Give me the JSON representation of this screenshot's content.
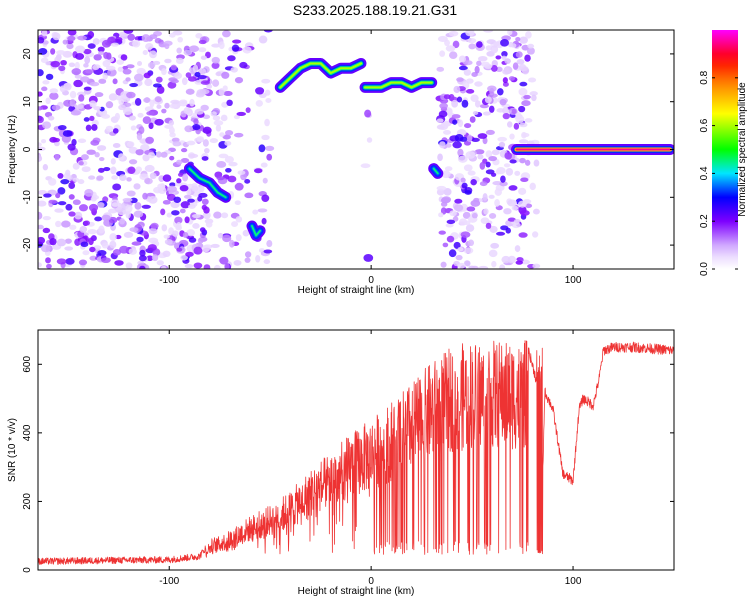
{
  "title": "S233.2025.188.19.21.G31",
  "chart_data": [
    {
      "type": "heatmap",
      "xlabel": "Height of straight line (km)",
      "ylabel": "Frequency (Hz)",
      "xlim": [
        -165,
        150
      ],
      "ylim": [
        -25,
        25
      ],
      "xticks": [
        -100,
        0,
        100
      ],
      "xtick_labels": [
        "-100",
        "0",
        "100"
      ],
      "yticks": [
        -20,
        -10,
        0,
        10,
        20
      ],
      "ytick_labels": [
        "-20",
        "-10",
        "0",
        "10",
        "20"
      ],
      "colorbar": {
        "label": "Normalized spectral amplitude",
        "range": [
          0,
          1
        ],
        "ticks": [
          0.0,
          0.2,
          0.4,
          0.6,
          0.8
        ],
        "tick_labels": [
          "0.0",
          "0.2",
          "0.4",
          "0.6",
          "0.8"
        ],
        "colors": [
          "#ffffff",
          "#e6ccff",
          "#7f00ff",
          "#0000ff",
          "#00ffff",
          "#00ff00",
          "#ffff00",
          "#ff7f00",
          "#ff0000",
          "#ff00ff"
        ]
      },
      "tracks": [
        {
          "x": [
            -90,
            -85,
            -80,
            -76,
            -72
          ],
          "y": [
            -4,
            -6,
            -7,
            -9,
            -10
          ],
          "amplitude": 0.45
        },
        {
          "x": [
            -59,
            -57,
            -55
          ],
          "y": [
            -16,
            -18,
            -17
          ],
          "amplitude": 0.45
        },
        {
          "x": [
            -45,
            -40,
            -35,
            -30,
            -25,
            -20,
            -15,
            -10,
            -5
          ],
          "y": [
            13,
            15,
            17,
            18,
            18,
            16,
            17,
            17,
            18
          ],
          "amplitude": 0.6
        },
        {
          "x": [
            -3,
            5,
            10,
            15,
            20,
            25,
            30
          ],
          "y": [
            13,
            13,
            14,
            14,
            13,
            14,
            14
          ],
          "amplitude": 0.6
        },
        {
          "x": [
            31,
            33
          ],
          "y": [
            -4,
            -5
          ],
          "amplitude": 0.45
        },
        {
          "x": [
            72,
            80,
            90,
            100,
            110,
            120,
            130,
            140,
            148
          ],
          "y": [
            0,
            0,
            0,
            0,
            0,
            0,
            0,
            0,
            0
          ],
          "amplitude": 0.95
        }
      ]
    },
    {
      "type": "line",
      "xlabel": "Height of straight line (km)",
      "ylabel": "SNR (10 * v/v)",
      "xlim": [
        -165,
        150
      ],
      "ylim": [
        0,
        700
      ],
      "xticks": [
        -100,
        0,
        100
      ],
      "xtick_labels": [
        "-100",
        "0",
        "100"
      ],
      "yticks": [
        0,
        200,
        400,
        600
      ],
      "ytick_labels": [
        "0",
        "200",
        "400",
        "600"
      ],
      "color": "#ee3333",
      "envelope": {
        "x": [
          -165,
          -130,
          -100,
          -85,
          -80,
          -70,
          -60,
          -50,
          -40,
          -30,
          -20,
          -10,
          0,
          10,
          20,
          30,
          40,
          50,
          60,
          70,
          78,
          82,
          84,
          86,
          90,
          95,
          100,
          103,
          105,
          110,
          113,
          115,
          120,
          130,
          140,
          150
        ],
        "y": [
          25,
          28,
          30,
          40,
          80,
          110,
          150,
          180,
          220,
          280,
          330,
          380,
          420,
          470,
          520,
          580,
          620,
          640,
          640,
          635,
          640,
          550,
          40,
          520,
          470,
          280,
          260,
          470,
          500,
          480,
          560,
          640,
          650,
          650,
          645,
          640
        ]
      }
    }
  ]
}
